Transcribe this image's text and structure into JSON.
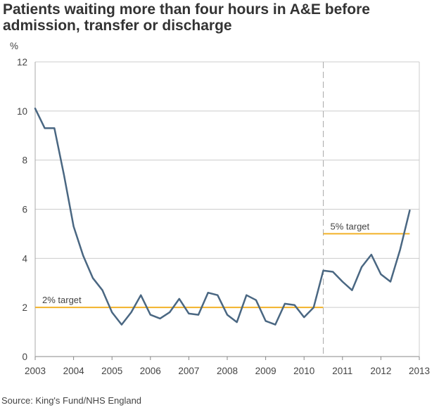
{
  "chart_data": {
    "type": "line",
    "title": "Patients waiting more than four hours in A&E before admission, transfer or discharge",
    "ylabel": "%",
    "xlabel": "",
    "source": "Source: King's Fund/NHS England",
    "xlim": [
      2003,
      2013
    ],
    "ylim": [
      0,
      12
    ],
    "x_ticks": [
      "2003",
      "2004",
      "2005",
      "2006",
      "2007",
      "2008",
      "2009",
      "2010",
      "2011",
      "2012",
      "2013"
    ],
    "y_ticks": [
      "0",
      "2",
      "4",
      "6",
      "8",
      "10",
      "12"
    ],
    "grid": true,
    "line_color": "#4a6782",
    "target_color": "#f2b229",
    "series": [
      {
        "x": [
          2003.0,
          2003.25,
          2003.5,
          2003.75,
          2004.0,
          2004.25,
          2004.5,
          2004.75,
          2005.0,
          2005.25,
          2005.5,
          2005.75,
          2006.0,
          2006.25,
          2006.5,
          2006.75,
          2007.0,
          2007.25,
          2007.5,
          2007.75,
          2008.0,
          2008.25,
          2008.5,
          2008.75,
          2009.0,
          2009.25,
          2009.5,
          2009.75,
          2010.0,
          2010.25,
          2010.5,
          2010.75,
          2011.0,
          2011.25,
          2011.5,
          2011.75,
          2012.0,
          2012.25,
          2012.5,
          2012.75
        ],
        "values": [
          10.1,
          9.3,
          9.3,
          7.4,
          5.3,
          4.1,
          3.2,
          2.7,
          1.8,
          1.3,
          1.8,
          2.5,
          1.7,
          1.55,
          1.8,
          2.35,
          1.75,
          1.7,
          2.6,
          2.5,
          1.7,
          1.4,
          2.5,
          2.3,
          1.45,
          1.3,
          2.15,
          2.1,
          1.6,
          2.0,
          3.5,
          3.45,
          3.05,
          2.7,
          3.65,
          4.15,
          3.35,
          3.05,
          4.35,
          5.95
        ]
      }
    ],
    "targets": [
      {
        "label": "2% target",
        "value": 2,
        "x_start": 2003,
        "x_end": 2010.5
      },
      {
        "label": "5% target",
        "value": 5,
        "x_start": 2010.5,
        "x_end": 2012.75
      }
    ],
    "divider_x": 2010.5
  }
}
